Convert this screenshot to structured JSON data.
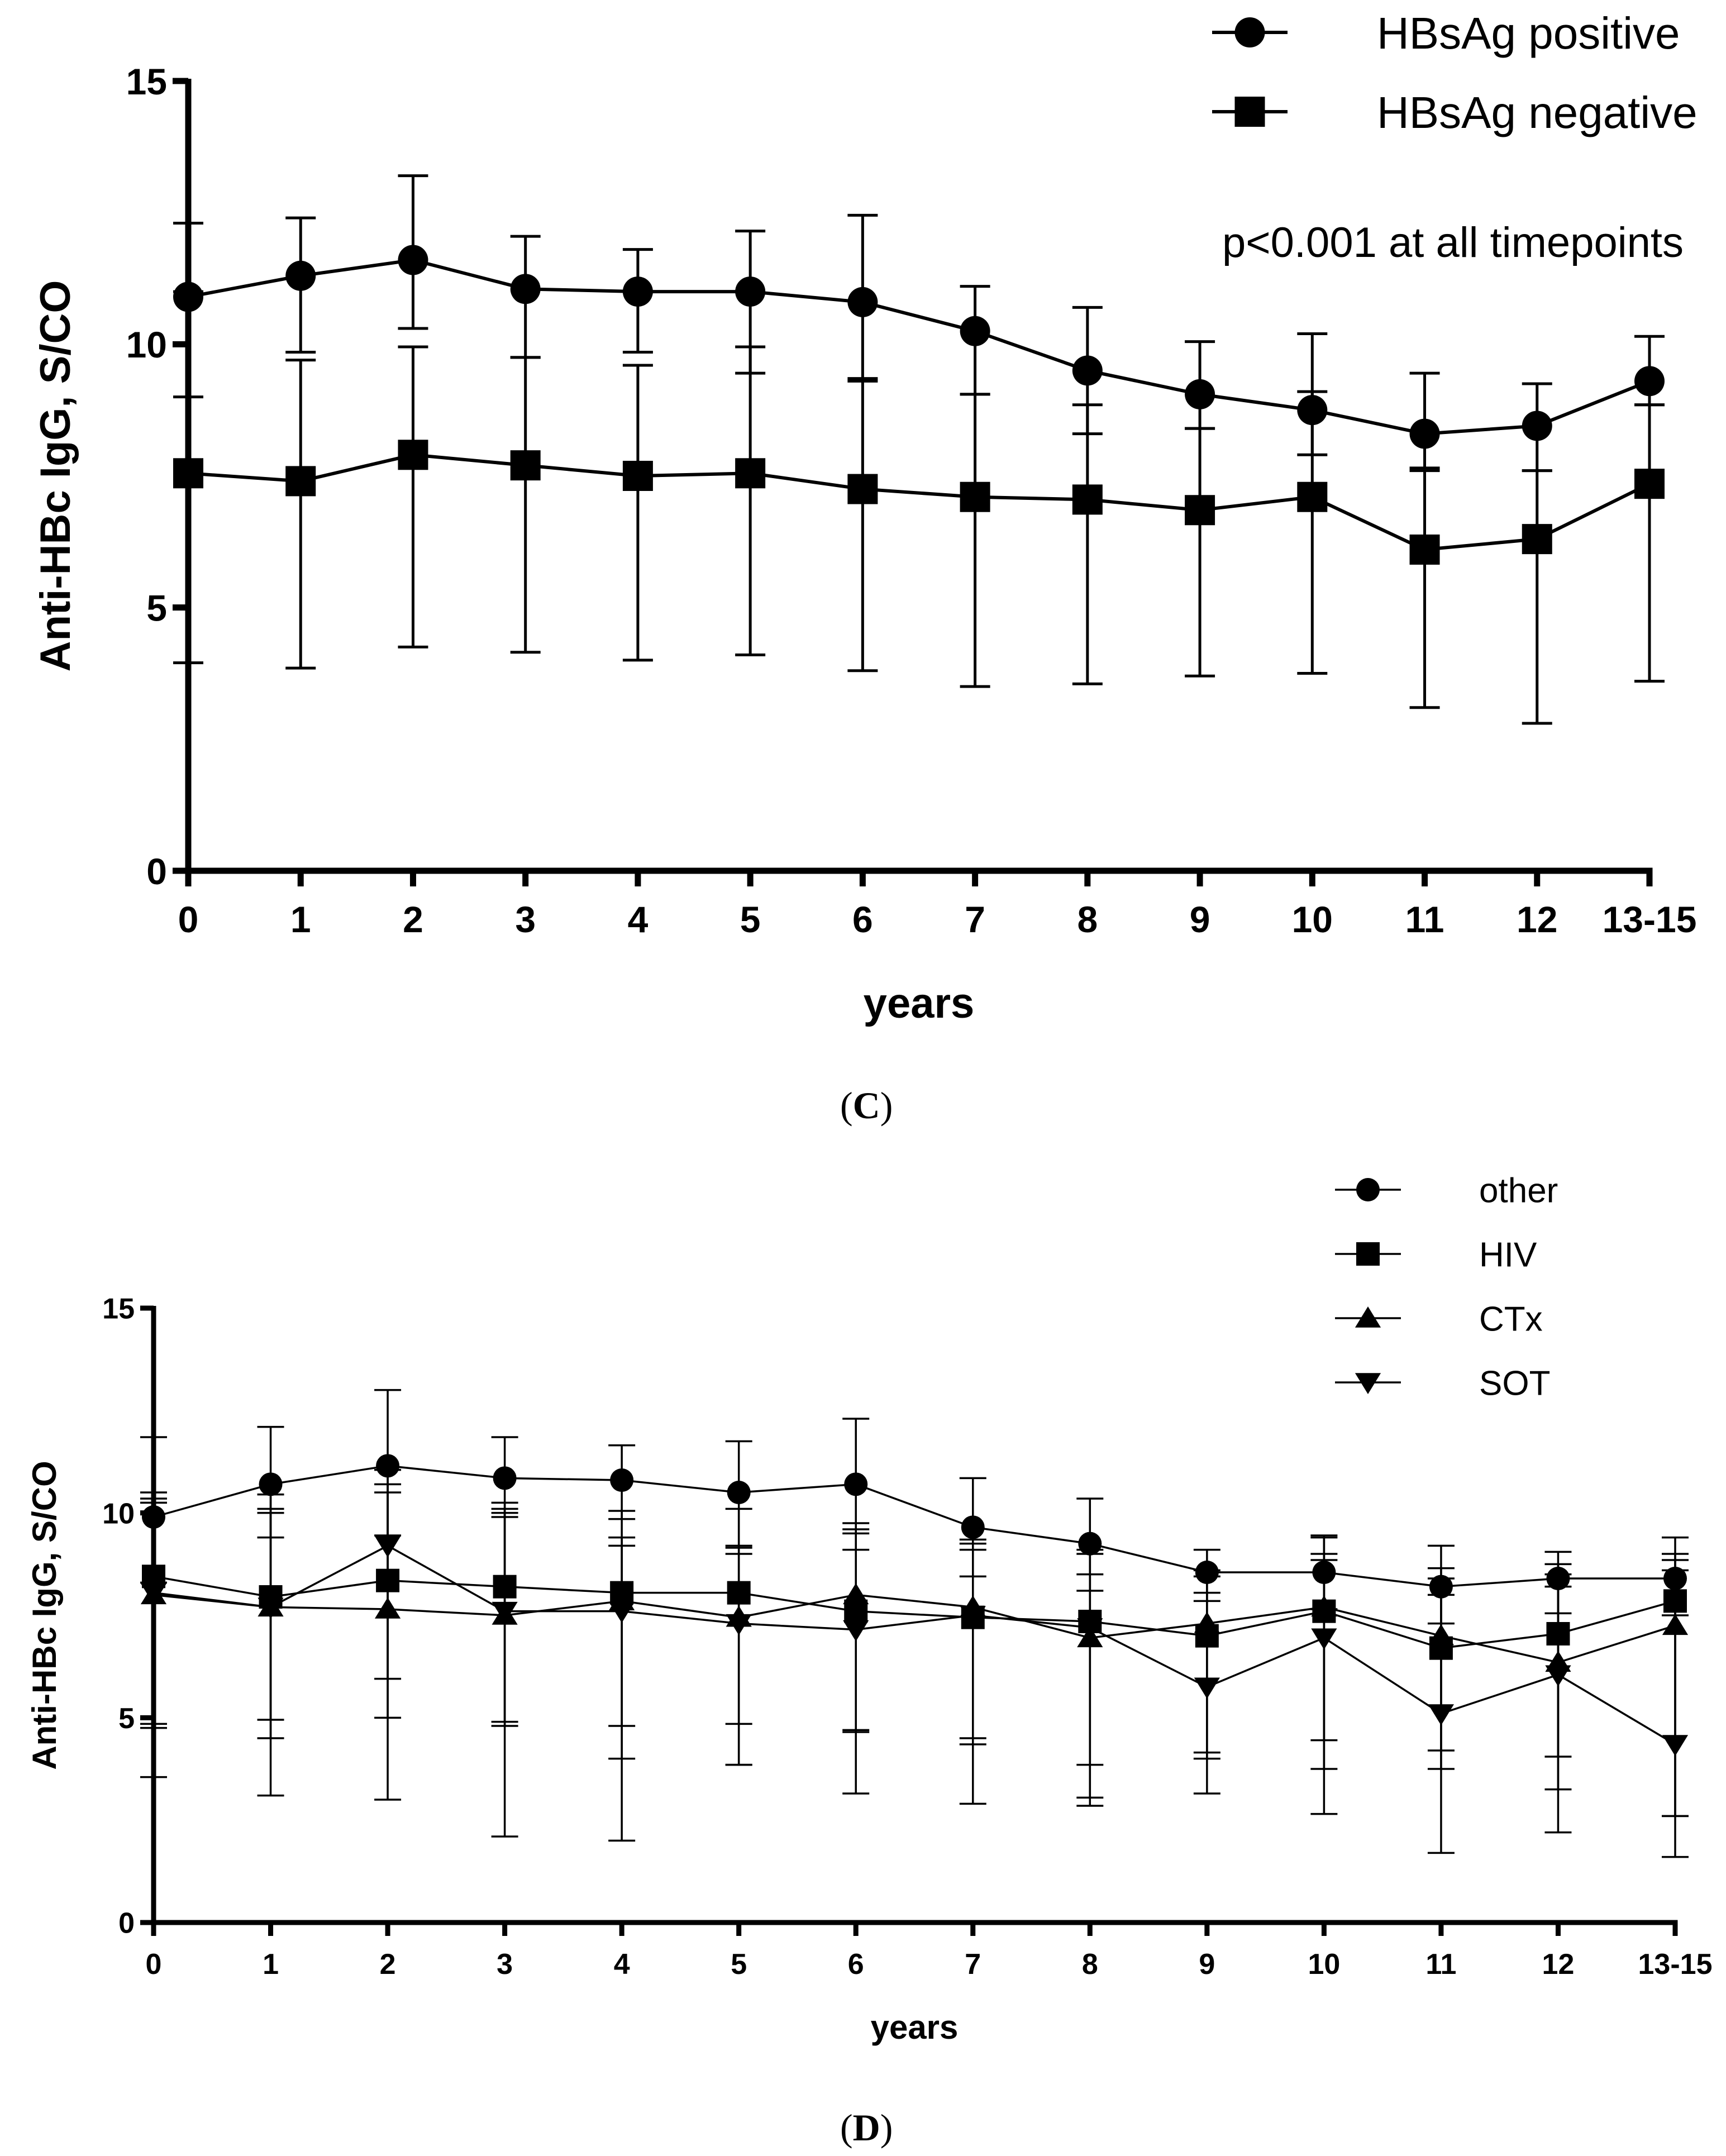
{
  "figure": {
    "panel_labels": [
      "(",
      "C",
      ")",
      "(",
      "D",
      ")"
    ]
  },
  "chart_data": [
    {
      "panel": "C",
      "type": "line",
      "title": "",
      "xlabel": "years",
      "ylabel": "Anti-HBc IgG, S/CO",
      "ylim": [
        0,
        15
      ],
      "yticks": [
        0,
        5,
        10,
        15
      ],
      "categories": [
        "0",
        "1",
        "2",
        "3",
        "4",
        "5",
        "6",
        "7",
        "8",
        "9",
        "10",
        "11",
        "12",
        "13-15"
      ],
      "annotation": "p<0.001 at all timepoints",
      "legend_position": "top-right",
      "series": [
        {
          "name": "HBsAg positive",
          "marker": "circle",
          "values": [
            10.9,
            11.3,
            11.6,
            11.05,
            11.0,
            11.0,
            10.8,
            10.25,
            9.5,
            9.05,
            8.75,
            8.3,
            8.45,
            9.3
          ],
          "err_low": [
            9.0,
            9.85,
            10.3,
            9.75,
            9.85,
            9.45,
            9.35,
            9.05,
            8.3,
            8.4,
            7.9,
            7.65,
            7.6,
            8.85
          ],
          "err_high": [
            12.3,
            12.4,
            13.2,
            12.05,
            11.8,
            12.15,
            12.45,
            11.1,
            10.7,
            10.05,
            10.2,
            9.45,
            9.25,
            10.15
          ]
        },
        {
          "name": "HBsAg negative",
          "marker": "square",
          "values": [
            7.55,
            7.4,
            7.9,
            7.7,
            7.5,
            7.55,
            7.25,
            7.1,
            7.05,
            6.85,
            7.1,
            6.1,
            6.3,
            7.35
          ],
          "err_low": [
            3.95,
            3.85,
            4.25,
            4.15,
            4.0,
            4.1,
            3.8,
            3.5,
            3.55,
            3.7,
            3.75,
            3.1,
            2.8,
            3.6
          ],
          "err_high": [
            11.0,
            9.7,
            9.95,
            9.75,
            9.6,
            9.95,
            9.3,
            9.05,
            8.85,
            8.4,
            9.1,
            7.6,
            7.6,
            8.85
          ]
        }
      ]
    },
    {
      "panel": "D",
      "type": "line",
      "title": "",
      "xlabel": "years",
      "ylabel": "Anti-HBc IgG, S/CO",
      "ylim": [
        0,
        15
      ],
      "yticks": [
        0,
        5,
        10,
        15
      ],
      "categories": [
        "0",
        "1",
        "2",
        "3",
        "4",
        "5",
        "6",
        "7",
        "8",
        "9",
        "10",
        "11",
        "12",
        "13-15"
      ],
      "legend_position": "top-right",
      "series": [
        {
          "name": "other",
          "marker": "circle",
          "values": [
            9.9,
            10.7,
            11.15,
            10.85,
            10.8,
            10.5,
            10.7,
            9.65,
            9.25,
            8.55,
            8.55,
            8.2,
            8.4,
            8.4
          ],
          "err_low": [
            8.3,
            9.4,
            9.45,
            9.9,
            9.85,
            9.2,
            9.1,
            8.45,
            8.1,
            7.85,
            7.65,
            7.3,
            7.55,
            7.5
          ],
          "err_high": [
            11.85,
            12.1,
            13.0,
            11.85,
            11.65,
            11.75,
            12.3,
            10.85,
            10.35,
            9.1,
            9.45,
            9.2,
            9.05,
            9.4
          ]
        },
        {
          "name": "HIV",
          "marker": "square",
          "values": [
            8.45,
            7.95,
            8.35,
            8.2,
            8.05,
            8.05,
            7.6,
            7.45,
            7.35,
            7.0,
            7.6,
            6.7,
            7.05,
            7.85
          ],
          "err_low": [
            4.85,
            4.95,
            5.95,
            4.9,
            4.8,
            4.85,
            4.7,
            4.5,
            3.85,
            4.15,
            4.45,
            4.2,
            4.05,
            2.6
          ],
          "err_high": [
            10.5,
            10.45,
            10.7,
            10.25,
            10.05,
            10.1,
            9.6,
            9.25,
            9.1,
            8.45,
            9.4,
            8.65,
            8.75,
            8.85
          ]
        },
        {
          "name": "CTx",
          "marker": "triangle-up",
          "values": [
            8.0,
            7.7,
            7.65,
            7.5,
            7.85,
            7.45,
            8.0,
            7.7,
            6.95,
            7.3,
            7.7,
            7.0,
            6.35,
            7.25
          ],
          "err_low": [
            3.55,
            3.1,
            3.0,
            2.1,
            2.0,
            3.85,
            3.15,
            2.9,
            2.85,
            3.15,
            2.65,
            1.7,
            2.2,
            1.6
          ],
          "err_high": [
            10.35,
            10.1,
            11.05,
            10.1,
            9.4,
            9.15,
            9.75,
            9.35,
            9.0,
            8.6,
            8.85,
            8.4,
            8.5,
            9.0
          ]
        },
        {
          "name": "SOT",
          "marker": "triangle-down",
          "values": [
            8.05,
            7.7,
            9.2,
            7.6,
            7.6,
            7.3,
            7.15,
            7.5,
            7.2,
            5.75,
            6.95,
            5.1,
            6.05,
            4.35
          ],
          "err_low": [
            4.75,
            4.5,
            5.0,
            4.8,
            4.0,
            3.85,
            4.65,
            4.35,
            3.05,
            4.0,
            3.75,
            3.75,
            3.25,
            2.6
          ],
          "err_high": [
            10.25,
            10.0,
            10.5,
            10.0,
            9.2,
            9.0,
            9.5,
            9.1,
            8.5,
            8.05,
            9.0,
            8.0,
            8.2,
            8.6
          ]
        }
      ]
    }
  ]
}
